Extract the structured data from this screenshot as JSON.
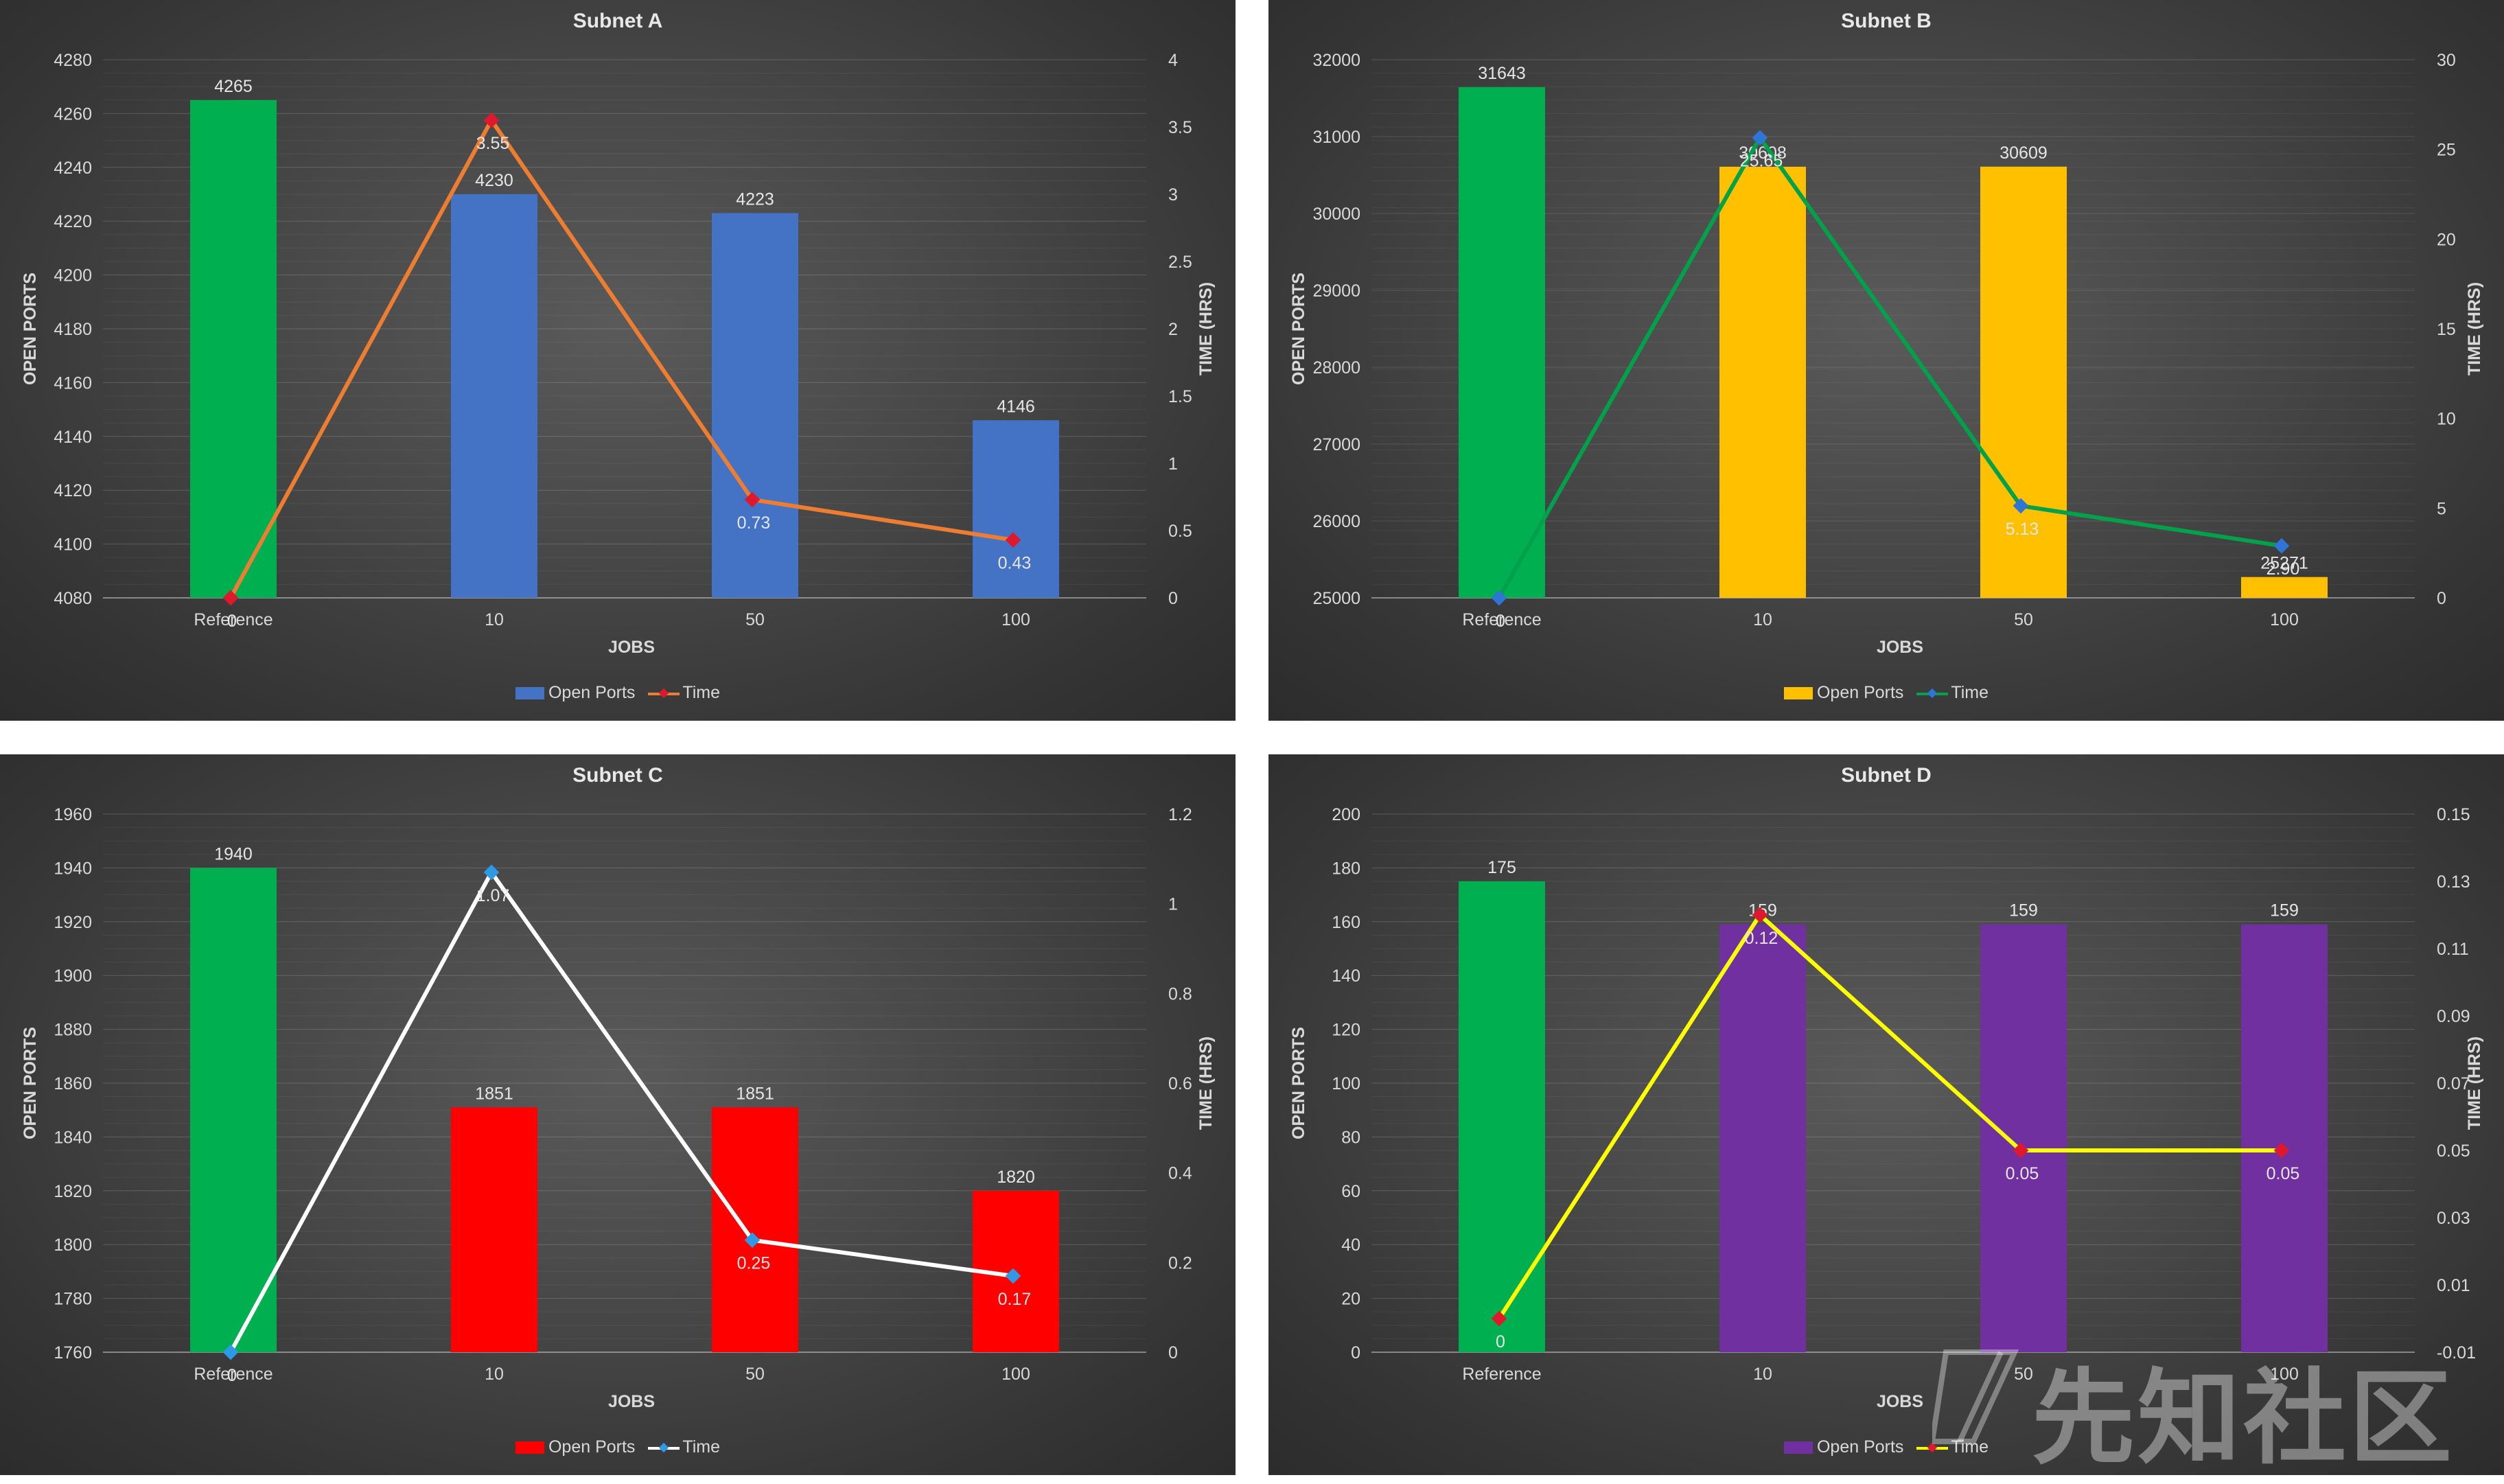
{
  "chart_data": [
    {
      "type": "bar",
      "title": "Subnet A",
      "xlabel": "JOBS",
      "ylabel": "OPEN PORTS",
      "y2label": "TIME (HRS)",
      "categories": [
        "Reference",
        "10",
        "50",
        "100"
      ],
      "ylim": [
        4080,
        4280
      ],
      "y_ticks": [
        "4080",
        "4100",
        "4120",
        "4140",
        "4160",
        "4180",
        "4200",
        "4220",
        "4240",
        "4260",
        "4280"
      ],
      "y2lim": [
        0,
        4
      ],
      "y2_ticks": [
        "0",
        "0.5",
        "1",
        "1.5",
        "2",
        "2.5",
        "3",
        "3.5",
        "4"
      ],
      "legend_position": "bottom",
      "series": [
        {
          "name": "Open Ports",
          "type": "bar",
          "axis": "left",
          "values": [
            4265,
            4230,
            4223,
            4146
          ],
          "labels": [
            "4265",
            "4230",
            "4223",
            "4146"
          ]
        },
        {
          "name": "Time",
          "type": "line",
          "axis": "right",
          "values": [
            0,
            3.55,
            0.73,
            0.43
          ],
          "labels": [
            "0",
            "3.55",
            "0.73",
            "0.43"
          ]
        }
      ],
      "colors": {
        "bars": [
          "#00b050",
          "#4472c4",
          "#4472c4",
          "#4472c4"
        ],
        "bar_series": "#4472c4",
        "line": "#ed7d31",
        "marker": "#e0182d"
      }
    },
    {
      "type": "bar",
      "title": "Subnet B",
      "xlabel": "JOBS",
      "ylabel": "OPEN PORTS",
      "y2label": "TIME (HRS)",
      "categories": [
        "Reference",
        "10",
        "50",
        "100"
      ],
      "ylim": [
        25000,
        32000
      ],
      "y_ticks": [
        "25000",
        "26000",
        "27000",
        "28000",
        "29000",
        "30000",
        "31000",
        "32000"
      ],
      "y2lim": [
        0,
        30
      ],
      "y2_ticks": [
        "0",
        "5",
        "10",
        "15",
        "20",
        "25",
        "30"
      ],
      "legend_position": "bottom",
      "series": [
        {
          "name": "Open Ports",
          "type": "bar",
          "axis": "left",
          "values": [
            31643,
            30608,
            30609,
            25271
          ],
          "labels": [
            "31643",
            "30608",
            "30609",
            "25271"
          ]
        },
        {
          "name": "Time",
          "type": "line",
          "axis": "right",
          "values": [
            0,
            25.65,
            5.13,
            2.9
          ],
          "labels": [
            "0",
            "25.65",
            "5.13",
            "2.90"
          ]
        }
      ],
      "colors": {
        "bars": [
          "#00b050",
          "#ffc000",
          "#ffc000",
          "#ffc000"
        ],
        "bar_series": "#ffc000",
        "line": "#00a14b",
        "marker": "#2e75d6"
      }
    },
    {
      "type": "bar",
      "title": "Subnet C",
      "xlabel": "JOBS",
      "ylabel": "OPEN PORTS",
      "y2label": "TIME (HRS)",
      "categories": [
        "Reference",
        "10",
        "50",
        "100"
      ],
      "ylim": [
        1760,
        1960
      ],
      "y_ticks": [
        "1760",
        "1780",
        "1800",
        "1820",
        "1840",
        "1860",
        "1880",
        "1900",
        "1920",
        "1940",
        "1960"
      ],
      "y2lim": [
        0,
        1.2
      ],
      "y2_ticks": [
        "0",
        "0.2",
        "0.4",
        "0.6",
        "0.8",
        "1",
        "1.2"
      ],
      "legend_position": "bottom",
      "series": [
        {
          "name": "Open Ports",
          "type": "bar",
          "axis": "left",
          "values": [
            1940,
            1851,
            1851,
            1820
          ],
          "labels": [
            "1940",
            "1851",
            "1851",
            "1820"
          ]
        },
        {
          "name": "Time",
          "type": "line",
          "axis": "right",
          "values": [
            0,
            1.07,
            0.25,
            0.17
          ],
          "labels": [
            "0",
            "1.07",
            "0.25",
            "0.17"
          ]
        }
      ],
      "colors": {
        "bars": [
          "#00b050",
          "#ff0000",
          "#ff0000",
          "#ff0000"
        ],
        "bar_series": "#ff0000",
        "line": "#ffffff",
        "marker": "#2e9ae6"
      }
    },
    {
      "type": "bar",
      "title": "Subnet D",
      "xlabel": "JOBS",
      "ylabel": "OPEN PORTS",
      "y2label": "TIME (HRS)",
      "categories": [
        "Reference",
        "10",
        "50",
        "100"
      ],
      "ylim": [
        0,
        200
      ],
      "y_ticks": [
        "0",
        "20",
        "40",
        "60",
        "80",
        "100",
        "120",
        "140",
        "160",
        "180",
        "200"
      ],
      "y2lim": [
        -0.01,
        0.15
      ],
      "y2_ticks": [
        "-0.01",
        "0.01",
        "0.03",
        "0.05",
        "0.07",
        "0.09",
        "0.11",
        "0.13",
        "0.15"
      ],
      "legend_position": "bottom",
      "series": [
        {
          "name": "Open Ports",
          "type": "bar",
          "axis": "left",
          "values": [
            175,
            159,
            159,
            159
          ],
          "labels": [
            "175",
            "159",
            "159",
            "159"
          ]
        },
        {
          "name": "Time",
          "type": "line",
          "axis": "right",
          "values": [
            0,
            0.12,
            0.05,
            0.05
          ],
          "labels": [
            "0",
            "0.12",
            "0.05",
            "0.05"
          ]
        }
      ],
      "colors": {
        "bars": [
          "#00b050",
          "#7030a0",
          "#7030a0",
          "#7030a0"
        ],
        "bar_series": "#7030a0",
        "line": "#ffff00",
        "marker": "#e0182d"
      }
    }
  ],
  "watermark": {
    "text": "先知社区"
  }
}
